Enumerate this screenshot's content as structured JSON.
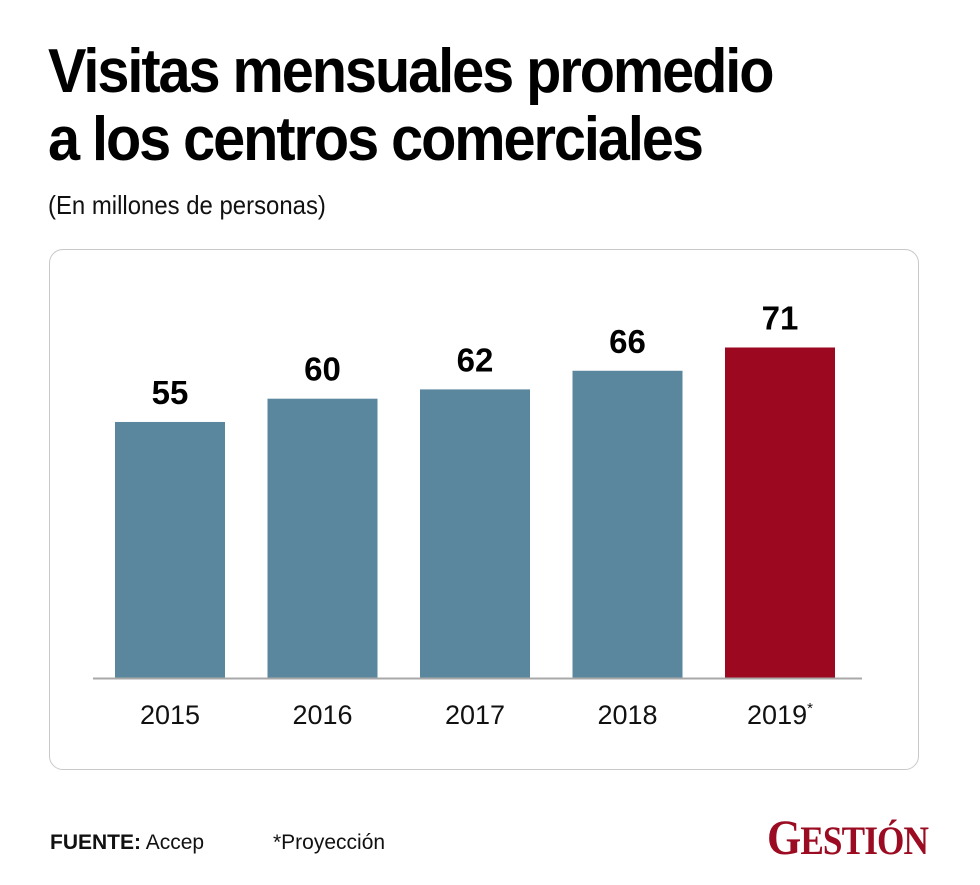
{
  "header": {
    "title_line1": "Visitas mensuales promedio",
    "title_line2": "a los centros comerciales",
    "subtitle": "(En millones de personas)"
  },
  "footer": {
    "source_label": "FUENTE:",
    "source_value": "Accep",
    "note": "*Proyección",
    "brand_first": "G",
    "brand_rest": "ESTIÓN"
  },
  "colors": {
    "bar_default": "#5b879e",
    "bar_highlight": "#9b0820",
    "brand": "#9b0b22"
  },
  "chart_data": {
    "type": "bar",
    "title": "Visitas mensuales promedio a los centros comerciales",
    "subtitle": "(En millones de personas)",
    "xlabel": "",
    "ylabel": "",
    "categories": [
      "2015",
      "2016",
      "2017",
      "2018",
      "2019"
    ],
    "category_suffixes": [
      "",
      "",
      "",
      "",
      "*"
    ],
    "values": [
      55,
      60,
      62,
      66,
      71
    ],
    "data_labels": [
      "55",
      "60",
      "62",
      "66",
      "71"
    ],
    "highlighted": [
      false,
      false,
      false,
      false,
      true
    ],
    "ylim": [
      0,
      71
    ],
    "grid": false,
    "legend": "none",
    "annotations": [
      "*Proyección"
    ]
  }
}
